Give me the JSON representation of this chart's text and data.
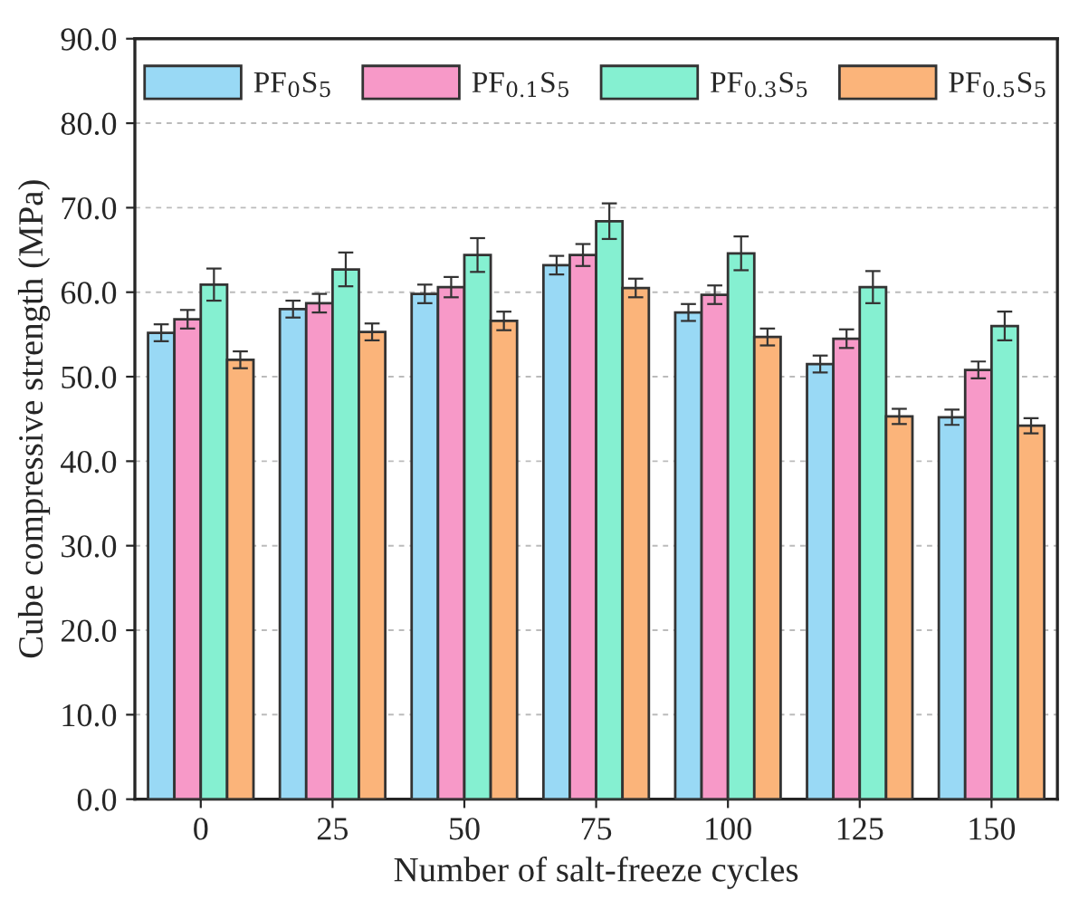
{
  "chart_data": {
    "type": "bar",
    "xlabel": "Number of salt-freeze cycles",
    "ylabel": "Cube compressive strength (MPa)",
    "categories": [
      "0",
      "25",
      "50",
      "75",
      "100",
      "125",
      "150"
    ],
    "series": [
      {
        "name": "PF$_{0}$S$_{5}$",
        "color": "#99d9f5",
        "values": [
          55.2,
          58.0,
          59.8,
          63.2,
          57.6,
          51.5,
          45.2
        ],
        "errors": [
          1.0,
          1.0,
          1.1,
          1.1,
          1.0,
          1.0,
          0.9
        ]
      },
      {
        "name": "PF$_{0.1}$S$_{5}$",
        "color": "#f799c8",
        "values": [
          56.8,
          58.7,
          60.6,
          64.4,
          59.7,
          54.5,
          50.8
        ],
        "errors": [
          1.1,
          1.1,
          1.2,
          1.3,
          1.1,
          1.1,
          1.0
        ]
      },
      {
        "name": "PF$_{0.3}$S$_{5}$",
        "color": "#85f0d1",
        "values": [
          60.9,
          62.7,
          64.4,
          68.4,
          64.6,
          60.6,
          56.0
        ],
        "errors": [
          1.9,
          2.0,
          2.0,
          2.1,
          2.0,
          1.9,
          1.7
        ]
      },
      {
        "name": "PF$_{0.5}$S$_{5}$",
        "color": "#fbb47a",
        "values": [
          52.0,
          55.3,
          56.6,
          60.5,
          54.7,
          45.3,
          44.2
        ],
        "errors": [
          1.0,
          1.0,
          1.1,
          1.1,
          1.0,
          0.9,
          0.9
        ]
      }
    ],
    "ylim": [
      0,
      90
    ],
    "yticks": [
      {
        "value": 0,
        "label": "0.0"
      },
      {
        "value": 10,
        "label": "10.0"
      },
      {
        "value": 20,
        "label": "20.0"
      },
      {
        "value": 30,
        "label": "30.0"
      },
      {
        "value": 40,
        "label": "40.0"
      },
      {
        "value": 50,
        "label": "50.0"
      },
      {
        "value": 60,
        "label": "60.0"
      },
      {
        "value": 70,
        "label": "70.0"
      },
      {
        "value": 80,
        "label": "80.0"
      },
      {
        "value": 90,
        "label": "90.0"
      }
    ],
    "grid": "y",
    "legend": "top"
  }
}
